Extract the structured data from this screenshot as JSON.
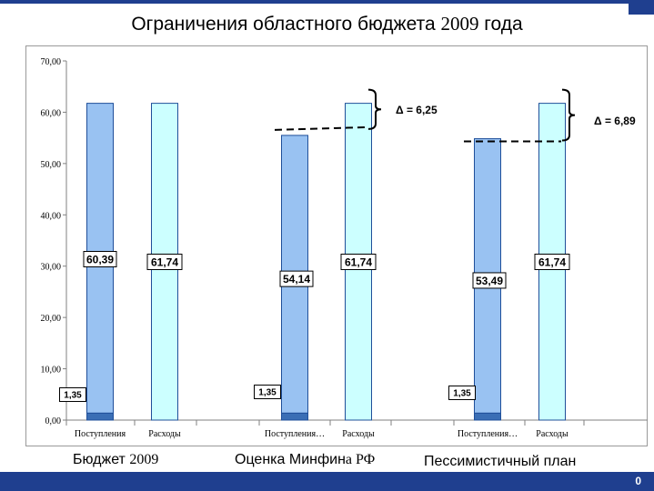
{
  "title": {
    "main": "Ограничения областного бюджета ",
    "year": "2009",
    "tail": " года"
  },
  "colors": {
    "income": "#99c2f2",
    "income_base": "#3a6eb5",
    "expense": "#ccffff",
    "bar_stroke": "#1f4f9a",
    "header_footer": "#1f3f8f"
  },
  "chart_data": {
    "type": "bar",
    "ylim": [
      0,
      70
    ],
    "yticks": [
      "0,00",
      "10,00",
      "20,00",
      "30,00",
      "40,00",
      "50,00",
      "60,00",
      "70,00"
    ],
    "categories": [
      "Поступления",
      "Расходы",
      "Поступления…",
      "Расходы",
      "Поступления…",
      "Расходы"
    ],
    "groups": [
      {
        "name": "Бюджет 2009",
        "income_total": 61.74,
        "income_label": "60,39",
        "income_base": 1.35,
        "income_base_label": "1,35",
        "expense": 61.74,
        "expense_label": "61,74",
        "delta": null
      },
      {
        "name": "Оценка Минфина РФ",
        "income_total": 55.49,
        "income_label": "54,14",
        "income_base": 1.35,
        "income_base_label": "1,35",
        "expense": 61.74,
        "expense_label": "61,74",
        "delta": "Δ = 6,25"
      },
      {
        "name": "Пессимистичный план",
        "income_total": 54.84,
        "income_label": "53,49",
        "income_base": 1.35,
        "income_base_label": "1,35",
        "expense": 61.74,
        "expense_label": "61,74",
        "delta": "Δ = 6,89"
      }
    ],
    "grid": false,
    "legend": "none"
  },
  "group_labels": {
    "g1_text": "Бюджет ",
    "g1_year": "2009",
    "g2_text": "Оценка Минфин",
    "g2_tail": "а РФ",
    "g3": "Пессимистичный план"
  },
  "footer": {
    "page": "0"
  }
}
